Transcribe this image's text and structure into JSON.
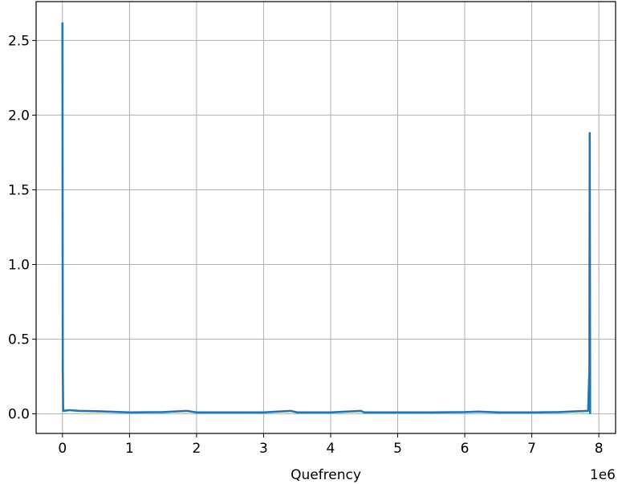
{
  "chart_data": {
    "type": "line",
    "title": "",
    "xlabel": "Quefrency",
    "ylabel": "",
    "x_offset_text": "1e6",
    "xlim": [
      -0.393,
      8.25
    ],
    "ylim": [
      -0.131,
      2.76
    ],
    "grid": true,
    "legend": "none",
    "xticks": [
      0,
      1,
      2,
      3,
      4,
      5,
      6,
      7,
      8
    ],
    "xtick_labels": [
      "0",
      "1",
      "2",
      "3",
      "4",
      "5",
      "6",
      "7",
      "8"
    ],
    "yticks": [
      0.0,
      0.5,
      1.0,
      1.5,
      2.0,
      2.5
    ],
    "ytick_labels": [
      "0.0",
      "0.5",
      "1.0",
      "1.5",
      "2.0",
      "2.5"
    ],
    "line_color": "#1f77b4",
    "series": [
      {
        "name": "",
        "x": [
          0,
          0.005,
          0.01,
          0.1,
          0.25,
          0.5,
          1.0,
          1.5,
          1.85,
          2.0,
          2.5,
          3.0,
          3.4,
          3.5,
          4.0,
          4.45,
          4.5,
          5.0,
          5.5,
          6.0,
          6.2,
          6.5,
          7.0,
          7.4,
          7.7,
          7.84,
          7.86,
          7.865,
          7.87
        ],
        "y": [
          2.62,
          0.3,
          0.02,
          0.025,
          0.02,
          0.018,
          0.01,
          0.012,
          0.02,
          0.01,
          0.01,
          0.01,
          0.02,
          0.01,
          0.01,
          0.02,
          0.01,
          0.01,
          0.01,
          0.012,
          0.015,
          0.01,
          0.01,
          0.012,
          0.018,
          0.02,
          0.3,
          1.88,
          0.0
        ]
      }
    ]
  }
}
